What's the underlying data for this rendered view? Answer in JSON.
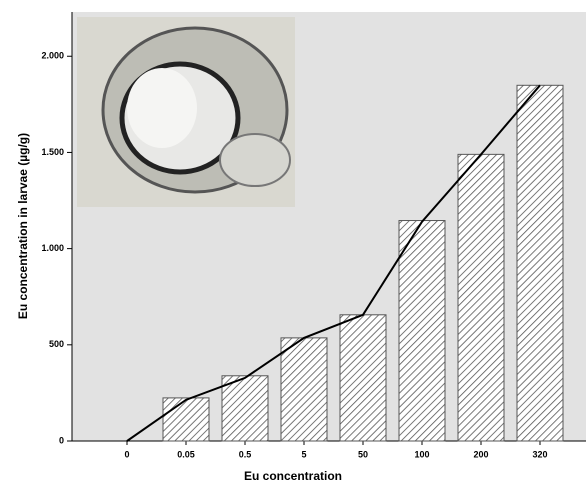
{
  "chart_data": {
    "type": "bar",
    "x_label": "Eu concentration",
    "y_label": "Eu concentration in larvae (µg/g)",
    "categories": [
      "0",
      "0.05",
      "0.5",
      "5",
      "50",
      "100",
      "200",
      "320"
    ],
    "series": [
      {
        "type": "bar",
        "color": "#555555",
        "values": [
          0,
          224,
          339,
          536,
          656,
          1146,
          1490,
          1849
        ]
      },
      {
        "type": "line",
        "color": "#000000",
        "values": [
          0,
          214,
          328,
          536,
          656,
          1140,
          1490,
          1849
        ]
      }
    ],
    "ylim": [
      0,
      2230
    ],
    "yticks": [
      0,
      500,
      {
        "value": 1000,
        "label": "1.000"
      },
      {
        "value": 1500,
        "label": "1.500"
      },
      {
        "value": 2000,
        "label": "2.000"
      }
    ]
  }
}
